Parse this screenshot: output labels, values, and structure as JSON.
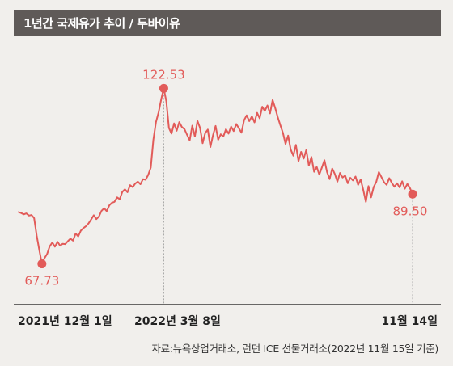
{
  "header": {
    "title": "1년간 국제유가 추이 / 두바이유"
  },
  "source_text": "자료:뉴욕상업거래소, 런던 ICE 선물거래소(2022년 11월 15일 기준)",
  "colors": {
    "line": "#e25b59",
    "title_bar": "#5f5a58",
    "background": "#f1efec"
  },
  "chart_data": {
    "type": "line",
    "title": "1년간 국제유가 추이 / 두바이유",
    "xlabel": "",
    "ylabel": "",
    "x_ticks": [
      "2021년 12월 1일",
      "2022년 3월 8일",
      "11월 14일"
    ],
    "ylim": [
      55,
      135
    ],
    "annotations": [
      {
        "label": "67.73",
        "value": 67.73,
        "marker": "min"
      },
      {
        "label": "122.53",
        "value": 122.53,
        "marker": "max"
      },
      {
        "label": "89.50",
        "value": 89.5,
        "marker": "last"
      }
    ],
    "series": [
      {
        "values": [
          83.9,
          83.6,
          83.2,
          83.5,
          82.8,
          83.0,
          82.0,
          76.5,
          72.0,
          67.73,
          69.5,
          70.8,
          73.2,
          74.4,
          73.1,
          74.6,
          73.4,
          74.0,
          73.9,
          74.8,
          75.6,
          75.0,
          77.2,
          76.3,
          78.1,
          78.9,
          79.5,
          80.4,
          81.6,
          82.9,
          81.7,
          82.5,
          84.3,
          85.1,
          84.2,
          86.0,
          86.8,
          87.1,
          88.5,
          87.9,
          90.2,
          91.0,
          90.1,
          92.3,
          91.7,
          92.8,
          93.4,
          92.6,
          94.2,
          94.0,
          95.5,
          97.8,
          106.5,
          112.0,
          115.0,
          119.0,
          122.53,
          118.5,
          110.2,
          108.4,
          111.6,
          109.3,
          112.0,
          110.5,
          109.8,
          108.0,
          106.3,
          110.9,
          107.5,
          112.4,
          110.2,
          105.4,
          108.6,
          109.7,
          104.2,
          107.9,
          110.8,
          106.5,
          108.2,
          107.5,
          109.8,
          108.4,
          110.6,
          109.2,
          111.4,
          110.1,
          108.7,
          112.6,
          114.1,
          112.3,
          113.8,
          111.9,
          114.9,
          113.2,
          116.8,
          115.5,
          117.2,
          114.7,
          118.9,
          116.4,
          113.5,
          111.0,
          108.6,
          105.2,
          107.8,
          103.4,
          101.5,
          104.9,
          99.8,
          102.7,
          100.6,
          103.3,
          98.4,
          101.1,
          96.5,
          98.0,
          95.6,
          97.8,
          100.1,
          96.4,
          94.2,
          97.5,
          95.8,
          93.4,
          96.1,
          94.7,
          95.3,
          92.9,
          94.6,
          93.8,
          95.0,
          92.4,
          94.1,
          90.8,
          87.1,
          92.0,
          88.5,
          91.7,
          93.3,
          96.4,
          94.8,
          93.2,
          92.4,
          94.5,
          93.0,
          91.8,
          92.9,
          91.6,
          93.5,
          91.2,
          92.7,
          91.4,
          89.5
        ]
      }
    ]
  }
}
